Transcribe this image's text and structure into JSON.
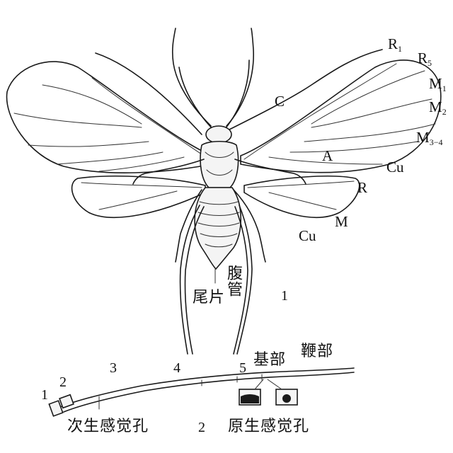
{
  "figure1": {
    "number": "1",
    "veins": {
      "C": "C",
      "A": "A",
      "R": "R",
      "Cu_fore": "Cu",
      "M": "M",
      "Cu_hind": "Cu",
      "R1_base": "R",
      "R1_sub": "1",
      "R5_base": "R",
      "R5_sub": "5",
      "M1_base": "M",
      "M1_sub": "1",
      "M2_base": "M",
      "M2_sub": "2",
      "M34_base": "M",
      "M34_sub": "3−4"
    },
    "fu_guan": "腹管",
    "wei_pian": "尾片"
  },
  "figure2": {
    "number": "2",
    "segments": [
      "1",
      "2",
      "3",
      "4",
      "5"
    ],
    "ji_bu": "基部",
    "bian_bu": "鞭部",
    "ci_sheng": "次生感觉孔",
    "yuan_sheng": "原生感觉孔"
  }
}
